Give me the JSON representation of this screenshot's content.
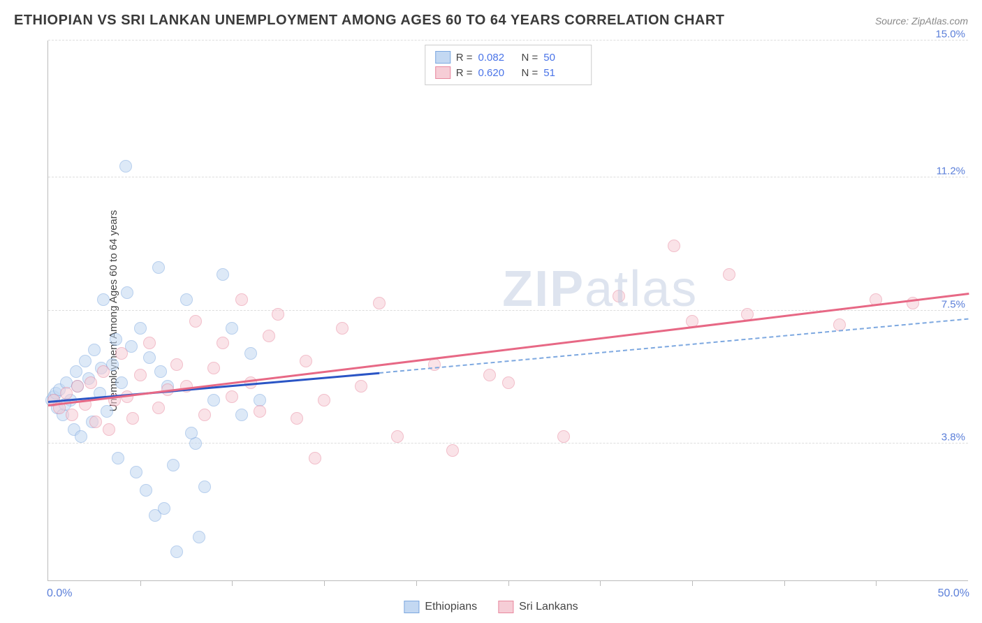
{
  "header": {
    "title": "ETHIOPIAN VS SRI LANKAN UNEMPLOYMENT AMONG AGES 60 TO 64 YEARS CORRELATION CHART",
    "source": "Source: ZipAtlas.com"
  },
  "watermark": {
    "prefix": "ZIP",
    "suffix": "atlas"
  },
  "chart": {
    "type": "scatter",
    "y_label": "Unemployment Among Ages 60 to 64 years",
    "xlim": [
      0,
      50
    ],
    "ylim": [
      0,
      15
    ],
    "x_min_label": "0.0%",
    "x_max_label": "50.0%",
    "x_ticks": [
      5,
      10,
      15,
      20,
      25,
      30,
      35,
      40,
      45
    ],
    "y_gridlines": [
      3.8,
      7.5,
      11.2,
      15.0
    ],
    "y_tick_labels": [
      "3.8%",
      "7.5%",
      "11.2%",
      "15.0%"
    ],
    "grid_color": "#dddddd",
    "axis_color": "#bbbbbb",
    "label_color": "#5b7fd9",
    "background_color": "#ffffff",
    "marker_size": 18,
    "series": [
      {
        "name": "Ethiopians",
        "fill": "#c3d8f2",
        "stroke": "#7da8e0",
        "fill_opacity": 0.55,
        "r": 0.082,
        "n": 50,
        "trend": {
          "x1": 0,
          "y1": 5.0,
          "x2": 18,
          "y2": 5.8,
          "color": "#2a55c5",
          "width": 2.5
        },
        "trend_ext": {
          "x1": 18,
          "y1": 5.8,
          "x2": 50,
          "y2": 7.3,
          "color": "#7da8e0",
          "dash": true
        },
        "points": [
          [
            0.2,
            5.0
          ],
          [
            0.3,
            5.1
          ],
          [
            0.4,
            5.2
          ],
          [
            0.5,
            4.8
          ],
          [
            0.6,
            5.3
          ],
          [
            0.8,
            4.6
          ],
          [
            1.0,
            5.5
          ],
          [
            1.2,
            5.0
          ],
          [
            1.4,
            4.2
          ],
          [
            1.5,
            5.8
          ],
          [
            1.8,
            4.0
          ],
          [
            2.0,
            6.1
          ],
          [
            2.2,
            5.6
          ],
          [
            2.5,
            6.4
          ],
          [
            2.8,
            5.2
          ],
          [
            3.0,
            7.8
          ],
          [
            3.2,
            4.7
          ],
          [
            3.5,
            6.0
          ],
          [
            3.8,
            3.4
          ],
          [
            4.0,
            5.5
          ],
          [
            4.2,
            11.5
          ],
          [
            4.5,
            6.5
          ],
          [
            4.8,
            3.0
          ],
          [
            5.0,
            7.0
          ],
          [
            5.3,
            2.5
          ],
          [
            5.5,
            6.2
          ],
          [
            5.8,
            1.8
          ],
          [
            6.0,
            8.7
          ],
          [
            6.3,
            2.0
          ],
          [
            6.5,
            5.4
          ],
          [
            6.8,
            3.2
          ],
          [
            7.0,
            0.8
          ],
          [
            7.5,
            7.8
          ],
          [
            8.0,
            3.8
          ],
          [
            8.2,
            1.2
          ],
          [
            8.5,
            2.6
          ],
          [
            9.0,
            5.0
          ],
          [
            9.5,
            8.5
          ],
          [
            10.0,
            7.0
          ],
          [
            10.5,
            4.6
          ],
          [
            11.0,
            6.3
          ],
          [
            11.5,
            5.0
          ],
          [
            2.9,
            5.9
          ],
          [
            4.3,
            8.0
          ],
          [
            3.7,
            6.7
          ],
          [
            1.6,
            5.4
          ],
          [
            2.4,
            4.4
          ],
          [
            0.9,
            4.9
          ],
          [
            6.1,
            5.8
          ],
          [
            7.8,
            4.1
          ]
        ]
      },
      {
        "name": "Sri Lankans",
        "fill": "#f6cdd6",
        "stroke": "#e8899f",
        "fill_opacity": 0.55,
        "r": 0.62,
        "n": 51,
        "trend": {
          "x1": 0,
          "y1": 4.9,
          "x2": 50,
          "y2": 8.0,
          "color": "#e76885",
          "width": 2.5
        },
        "points": [
          [
            0.3,
            5.0
          ],
          [
            0.6,
            4.8
          ],
          [
            1.0,
            5.2
          ],
          [
            1.3,
            4.6
          ],
          [
            1.6,
            5.4
          ],
          [
            2.0,
            4.9
          ],
          [
            2.3,
            5.5
          ],
          [
            2.6,
            4.4
          ],
          [
            3.0,
            5.8
          ],
          [
            3.3,
            4.2
          ],
          [
            3.6,
            5.0
          ],
          [
            4.0,
            6.3
          ],
          [
            4.3,
            5.1
          ],
          [
            4.6,
            4.5
          ],
          [
            5.0,
            5.7
          ],
          [
            5.5,
            6.6
          ],
          [
            6.0,
            4.8
          ],
          [
            6.5,
            5.3
          ],
          [
            7.0,
            6.0
          ],
          [
            7.5,
            5.4
          ],
          [
            8.0,
            7.2
          ],
          [
            8.5,
            4.6
          ],
          [
            9.0,
            5.9
          ],
          [
            9.5,
            6.6
          ],
          [
            10.0,
            5.1
          ],
          [
            10.5,
            7.8
          ],
          [
            11.0,
            5.5
          ],
          [
            11.5,
            4.7
          ],
          [
            12.0,
            6.8
          ],
          [
            12.5,
            7.4
          ],
          [
            13.5,
            4.5
          ],
          [
            14.0,
            6.1
          ],
          [
            14.5,
            3.4
          ],
          [
            15.0,
            5.0
          ],
          [
            16.0,
            7.0
          ],
          [
            17.0,
            5.4
          ],
          [
            18.0,
            7.7
          ],
          [
            19.0,
            4.0
          ],
          [
            21.0,
            6.0
          ],
          [
            22.0,
            3.6
          ],
          [
            24.0,
            5.7
          ],
          [
            25.0,
            5.5
          ],
          [
            28.0,
            4.0
          ],
          [
            31.0,
            7.9
          ],
          [
            34.0,
            9.3
          ],
          [
            35.0,
            7.2
          ],
          [
            37.0,
            8.5
          ],
          [
            38.0,
            7.4
          ],
          [
            43.0,
            7.1
          ],
          [
            45.0,
            7.8
          ],
          [
            47.0,
            7.7
          ]
        ]
      }
    ],
    "legend_top": [
      {
        "swatch_fill": "#c3d8f2",
        "swatch_stroke": "#7da8e0",
        "r_label": "R = ",
        "r_val": "0.082",
        "n_label": "N = ",
        "n_val": "50"
      },
      {
        "swatch_fill": "#f6cdd6",
        "swatch_stroke": "#e8899f",
        "r_label": "R = ",
        "r_val": "0.620",
        "n_label": "N = ",
        "n_val": "51"
      }
    ],
    "legend_bottom": [
      {
        "swatch_fill": "#c3d8f2",
        "swatch_stroke": "#7da8e0",
        "label": "Ethiopians"
      },
      {
        "swatch_fill": "#f6cdd6",
        "swatch_stroke": "#e8899f",
        "label": "Sri Lankans"
      }
    ]
  }
}
